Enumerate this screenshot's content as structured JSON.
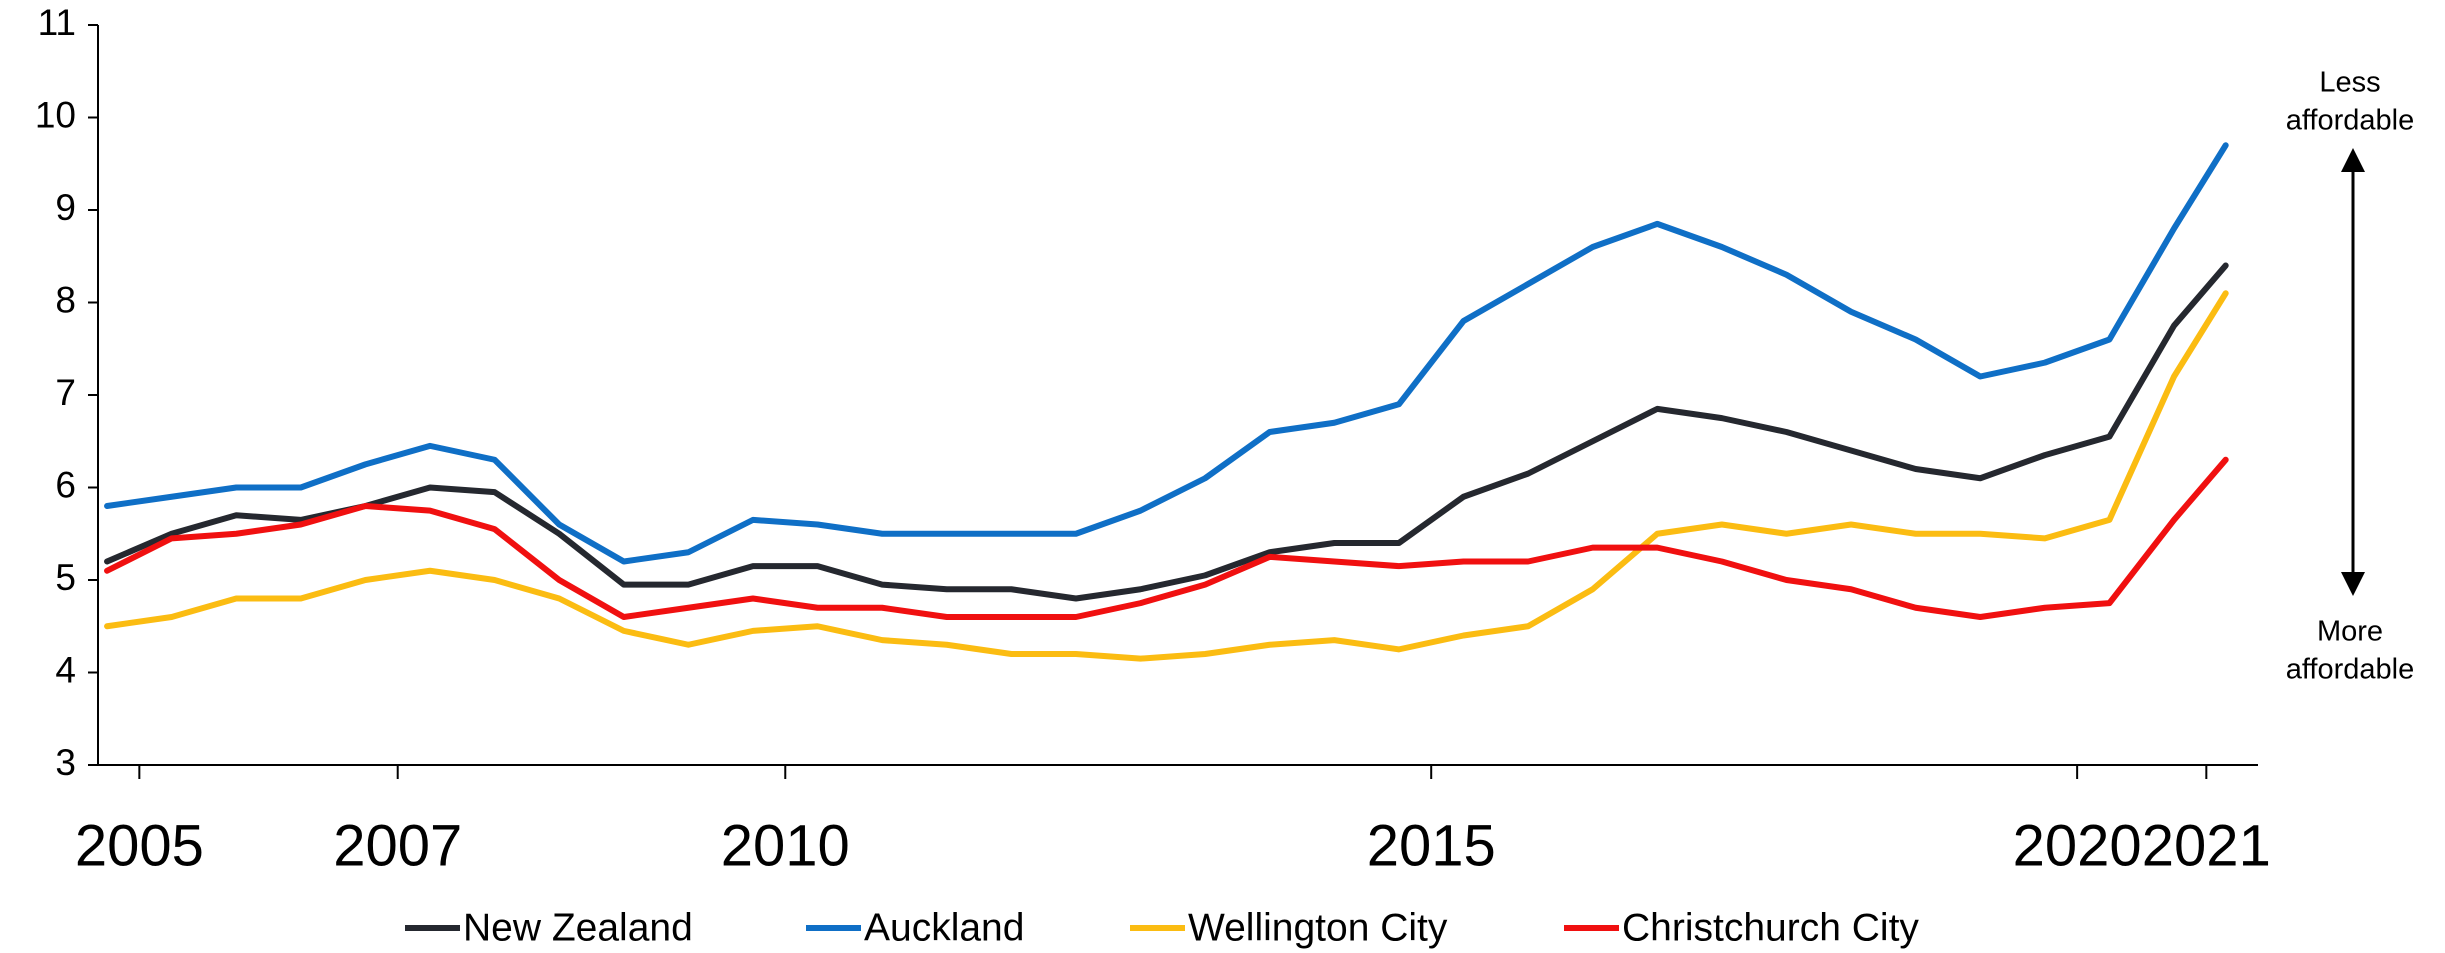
{
  "chart_data": {
    "type": "line",
    "x": [
      2004.75,
      2005.25,
      2005.75,
      2006.25,
      2006.75,
      2007.25,
      2007.75,
      2008.25,
      2008.75,
      2009.25,
      2009.75,
      2010.25,
      2010.75,
      2011.25,
      2011.75,
      2012.25,
      2012.75,
      2013.25,
      2013.75,
      2014.25,
      2014.75,
      2015.25,
      2015.75,
      2016.25,
      2016.75,
      2017.25,
      2017.75,
      2018.25,
      2018.75,
      2019.25,
      2019.75,
      2020.25,
      2020.75,
      2021.15
    ],
    "series": [
      {
        "name": "New Zealand",
        "color": "#25282f",
        "values": [
          5.2,
          5.5,
          5.7,
          5.65,
          5.8,
          6.0,
          5.95,
          5.5,
          4.95,
          4.95,
          5.15,
          5.15,
          4.95,
          4.9,
          4.9,
          4.8,
          4.9,
          5.05,
          5.3,
          5.4,
          5.4,
          5.9,
          6.15,
          6.5,
          6.85,
          6.75,
          6.6,
          6.4,
          6.2,
          6.1,
          6.35,
          6.55,
          7.75,
          8.4
        ]
      },
      {
        "name": "Auckland",
        "color": "#0f6fc6",
        "values": [
          5.8,
          5.9,
          6.0,
          6.0,
          6.25,
          6.45,
          6.3,
          5.6,
          5.2,
          5.3,
          5.65,
          5.6,
          5.5,
          5.5,
          5.5,
          5.5,
          5.75,
          6.1,
          6.6,
          6.7,
          6.9,
          7.8,
          8.2,
          8.6,
          8.85,
          8.6,
          8.3,
          7.9,
          7.6,
          7.2,
          7.35,
          7.6,
          8.8,
          9.7
        ]
      },
      {
        "name": "Wellington City",
        "color": "#fbbc12",
        "values": [
          4.5,
          4.6,
          4.8,
          4.8,
          5.0,
          5.1,
          5.0,
          4.8,
          4.45,
          4.3,
          4.45,
          4.5,
          4.35,
          4.3,
          4.2,
          4.2,
          4.15,
          4.2,
          4.3,
          4.35,
          4.25,
          4.4,
          4.5,
          4.9,
          5.5,
          5.6,
          5.5,
          5.6,
          5.5,
          5.5,
          5.45,
          5.65,
          7.2,
          8.1
        ]
      },
      {
        "name": "Christchurch City",
        "color": "#f01010",
        "values": [
          5.1,
          5.45,
          5.5,
          5.6,
          5.8,
          5.75,
          5.55,
          5.0,
          4.6,
          4.7,
          4.8,
          4.7,
          4.7,
          4.6,
          4.6,
          4.6,
          4.75,
          4.95,
          5.25,
          5.2,
          5.15,
          5.2,
          5.2,
          5.35,
          5.35,
          5.2,
          5.0,
          4.9,
          4.7,
          4.6,
          4.7,
          4.75,
          5.65,
          6.3
        ]
      }
    ],
    "xlim": [
      2004.68,
      2021.4
    ],
    "xticks": [
      2005,
      2007,
      2010,
      2015,
      2020,
      2021
    ],
    "ylim": [
      3,
      11
    ],
    "yticks": [
      3,
      4,
      5,
      6,
      7,
      8,
      9,
      10,
      11
    ],
    "annotations": [
      [
        "Less",
        "affordable"
      ],
      [
        "More",
        "affordable"
      ]
    ],
    "legend": "bottom",
    "grid": false
  }
}
